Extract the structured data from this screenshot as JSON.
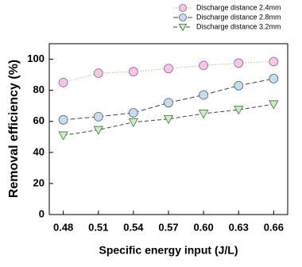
{
  "chart_data": {
    "type": "line",
    "x_label": "Specific energy input (J/L)",
    "y_label": "Removal efficiency (%)",
    "x": [
      0.48,
      0.51,
      0.54,
      0.57,
      0.6,
      0.63,
      0.66
    ],
    "xlim": [
      0.468,
      0.672
    ],
    "xticks": [
      0.48,
      0.51,
      0.54,
      0.57,
      {
        "value": 0.6,
        "label": "0.60"
      },
      0.63,
      0.66
    ],
    "ylim": [
      0,
      110
    ],
    "yticks": [
      0,
      20,
      40,
      60,
      80,
      100
    ],
    "grid": false,
    "legend": "top-right",
    "series": [
      {
        "name": "Discharge distance 2.4mm",
        "color": "#f4c6e8",
        "edge": "#8a6a8a",
        "line_color": "#a8c890",
        "dash": "1.5,2",
        "marker": "circle",
        "values": [
          85,
          91,
          92,
          94,
          96,
          97.5,
          98.5
        ]
      },
      {
        "name": "Discharge distance 2.8mm",
        "color": "#c6ddf0",
        "edge": "#556070",
        "line_color": "#444444",
        "dash": "6,3",
        "marker": "circle",
        "values": [
          61,
          63,
          65.5,
          72,
          77,
          83,
          87.5
        ]
      },
      {
        "name": "Discharge distance 3.2mm",
        "color": "#c8f0c0",
        "edge": "#4a6a4a",
        "line_color": "#444444",
        "dash": "5,3",
        "marker": "triangle-down",
        "values": [
          51,
          54.5,
          59.5,
          61.5,
          65,
          67.5,
          71
        ]
      }
    ]
  }
}
